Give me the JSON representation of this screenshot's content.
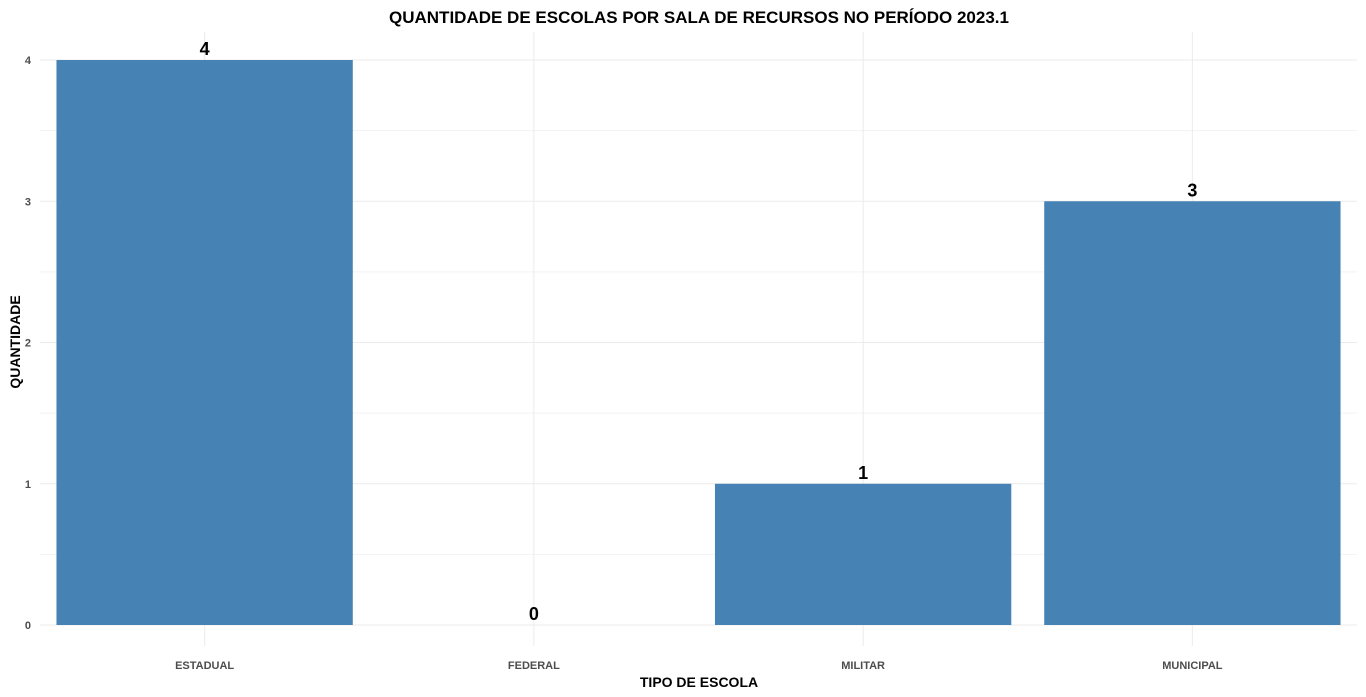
{
  "chart_data": {
    "type": "bar",
    "title": "QUANTIDADE DE ESCOLAS POR SALA DE RECURSOS NO PERÍODO 2023.1",
    "xlabel": "TIPO DE ESCOLA",
    "ylabel": "QUANTIDADE",
    "categories": [
      "ESTADUAL",
      "FEDERAL",
      "MILITAR",
      "MUNICIPAL"
    ],
    "values": [
      4,
      0,
      1,
      3
    ],
    "data_labels": [
      "4",
      "0",
      "1",
      "3"
    ],
    "y_ticks": [
      0,
      1,
      2,
      3,
      4
    ],
    "y_tick_labels": [
      "0",
      "1",
      "2",
      "3",
      "4"
    ],
    "ylim": [
      0,
      4.2
    ],
    "grid": true,
    "legend": "none",
    "bar_color": "#4682B4"
  }
}
